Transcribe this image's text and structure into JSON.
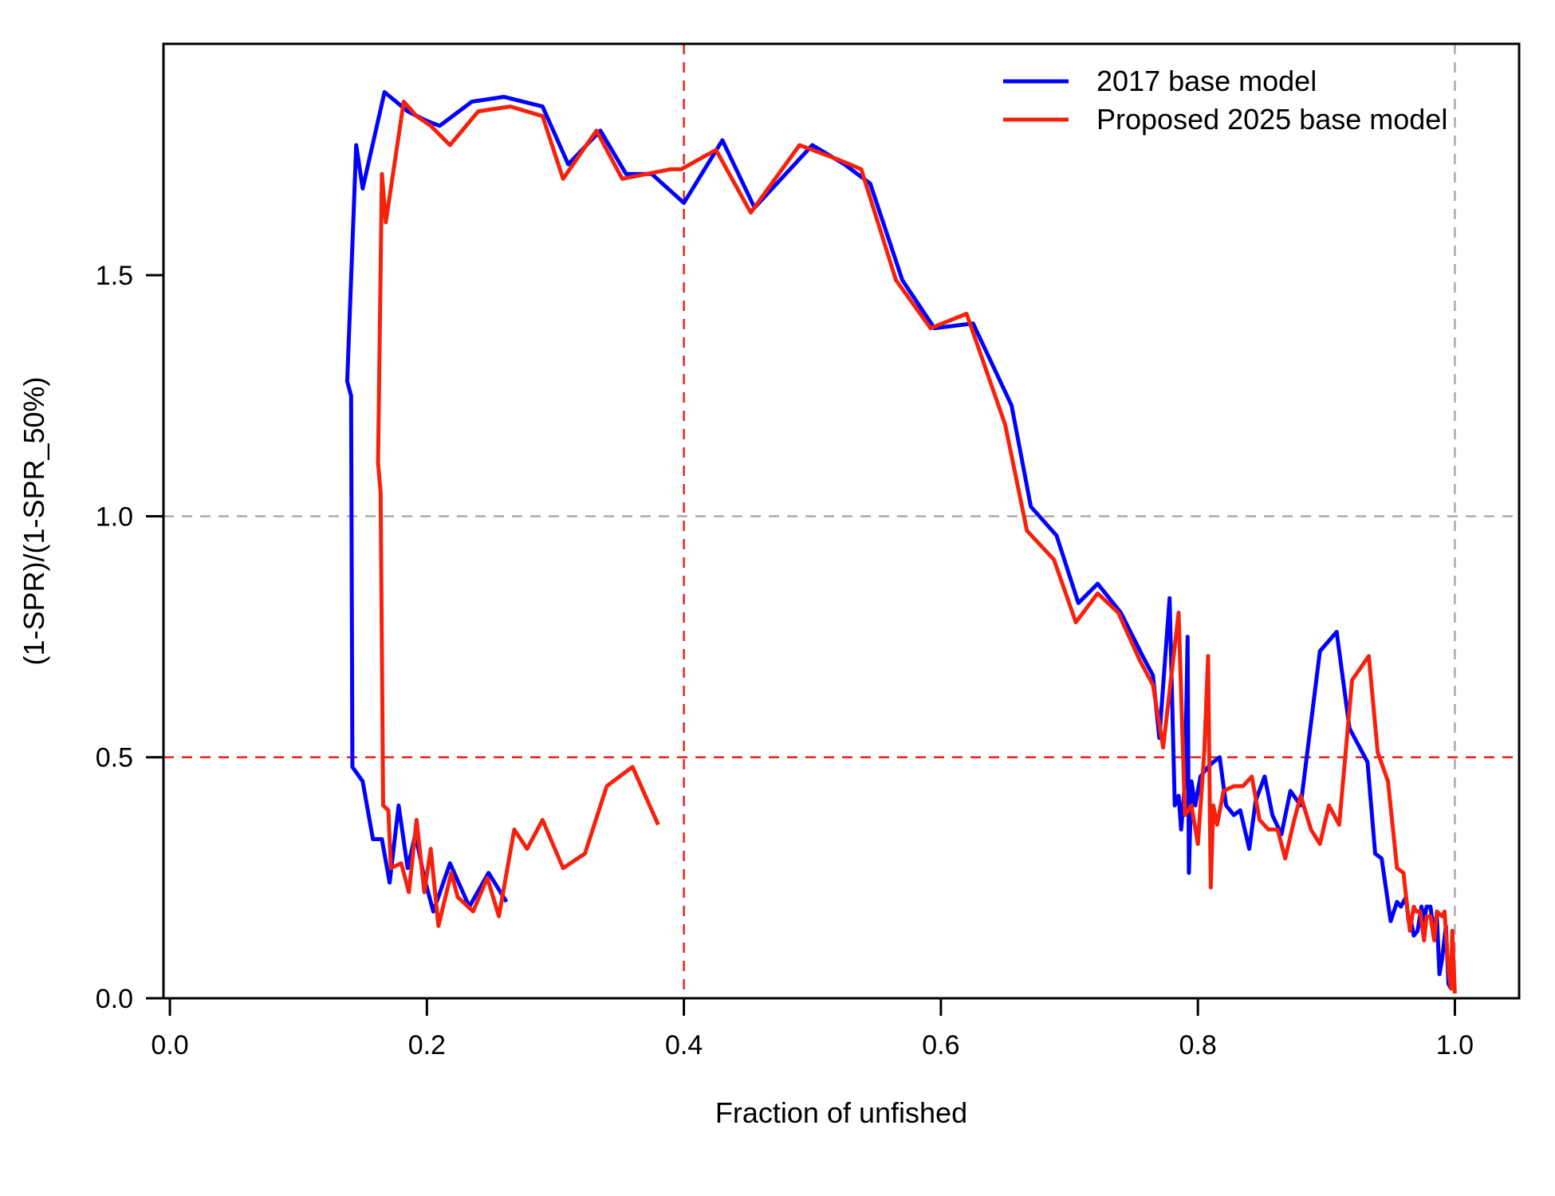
{
  "chart_data": {
    "type": "line",
    "xlabel": "Fraction of unfished",
    "ylabel": "(1-SPR)/(1-SPR_50%)",
    "xlim": [
      -0.005,
      1.05
    ],
    "ylim": [
      0.0,
      1.98
    ],
    "x_ticks": [
      0.0,
      0.2,
      0.4,
      0.6,
      0.8,
      1.0
    ],
    "x_tick_labels": [
      "0.0",
      "0.2",
      "0.4",
      "0.6",
      "0.8",
      "1.0"
    ],
    "y_ticks": [
      0.0,
      0.5,
      1.0,
      1.5
    ],
    "y_tick_labels": [
      "0.0",
      "0.5",
      "1.0",
      "1.5"
    ],
    "grid": false,
    "legend_position": "top-right",
    "reference_lines": [
      {
        "orientation": "vertical",
        "value": 0.4,
        "color": "#e8231f"
      },
      {
        "orientation": "vertical",
        "value": 1.0,
        "color": "#aaaaaa"
      },
      {
        "orientation": "horizontal",
        "value": 0.5,
        "color": "#e8231f"
      },
      {
        "orientation": "horizontal",
        "value": 1.0,
        "color": "#aaaaaa"
      }
    ],
    "series": [
      {
        "name": "2017 base model",
        "color": "#0000ff",
        "points": [
          [
            0.262,
            0.2
          ],
          [
            0.248,
            0.26
          ],
          [
            0.233,
            0.19
          ],
          [
            0.218,
            0.28
          ],
          [
            0.205,
            0.18
          ],
          [
            0.198,
            0.25
          ],
          [
            0.191,
            0.34
          ],
          [
            0.185,
            0.27
          ],
          [
            0.178,
            0.4
          ],
          [
            0.171,
            0.24
          ],
          [
            0.165,
            0.33
          ],
          [
            0.158,
            0.33
          ],
          [
            0.15,
            0.45
          ],
          [
            0.142,
            0.48
          ],
          [
            0.141,
            1.25
          ],
          [
            0.138,
            1.28
          ],
          [
            0.145,
            1.77
          ],
          [
            0.15,
            1.68
          ],
          [
            0.167,
            1.88
          ],
          [
            0.185,
            1.84
          ],
          [
            0.2,
            1.82
          ],
          [
            0.21,
            1.81
          ],
          [
            0.235,
            1.86
          ],
          [
            0.26,
            1.87
          ],
          [
            0.29,
            1.85
          ],
          [
            0.31,
            1.73
          ],
          [
            0.335,
            1.8
          ],
          [
            0.355,
            1.71
          ],
          [
            0.375,
            1.71
          ],
          [
            0.4,
            1.65
          ],
          [
            0.43,
            1.78
          ],
          [
            0.455,
            1.64
          ],
          [
            0.5,
            1.77
          ],
          [
            0.525,
            1.73
          ],
          [
            0.545,
            1.69
          ],
          [
            0.57,
            1.49
          ],
          [
            0.595,
            1.39
          ],
          [
            0.625,
            1.4
          ],
          [
            0.655,
            1.23
          ],
          [
            0.67,
            1.02
          ],
          [
            0.69,
            0.96
          ],
          [
            0.707,
            0.82
          ],
          [
            0.722,
            0.86
          ],
          [
            0.74,
            0.8
          ],
          [
            0.757,
            0.71
          ],
          [
            0.765,
            0.67
          ],
          [
            0.77,
            0.54
          ],
          [
            0.778,
            0.83
          ],
          [
            0.782,
            0.4
          ],
          [
            0.785,
            0.42
          ],
          [
            0.787,
            0.35
          ],
          [
            0.79,
            0.45
          ],
          [
            0.792,
            0.75
          ],
          [
            0.793,
            0.26
          ],
          [
            0.795,
            0.45
          ],
          [
            0.798,
            0.4
          ],
          [
            0.802,
            0.46
          ],
          [
            0.808,
            0.48
          ],
          [
            0.812,
            0.49
          ],
          [
            0.817,
            0.5
          ],
          [
            0.822,
            0.4
          ],
          [
            0.828,
            0.38
          ],
          [
            0.833,
            0.39
          ],
          [
            0.84,
            0.31
          ],
          [
            0.845,
            0.41
          ],
          [
            0.852,
            0.46
          ],
          [
            0.858,
            0.38
          ],
          [
            0.865,
            0.34
          ],
          [
            0.872,
            0.43
          ],
          [
            0.88,
            0.4
          ],
          [
            0.895,
            0.72
          ],
          [
            0.908,
            0.76
          ],
          [
            0.918,
            0.56
          ],
          [
            0.932,
            0.49
          ],
          [
            0.938,
            0.3
          ],
          [
            0.943,
            0.29
          ],
          [
            0.95,
            0.16
          ],
          [
            0.955,
            0.2
          ],
          [
            0.958,
            0.19
          ],
          [
            0.962,
            0.21
          ],
          [
            0.964,
            0.16
          ],
          [
            0.966,
            0.16
          ],
          [
            0.968,
            0.13
          ],
          [
            0.971,
            0.14
          ],
          [
            0.974,
            0.19
          ],
          [
            0.976,
            0.16
          ],
          [
            0.978,
            0.19
          ],
          [
            0.981,
            0.19
          ],
          [
            0.983,
            0.15
          ],
          [
            0.986,
            0.17
          ],
          [
            0.988,
            0.05
          ],
          [
            0.99,
            0.08
          ],
          [
            0.993,
            0.15
          ],
          [
            0.995,
            0.03
          ],
          [
            0.997,
            0.02
          ],
          [
            1.0,
            0.03
          ]
        ]
      },
      {
        "name": "Proposed 2025 base model",
        "color": "#f5210d",
        "points": [
          [
            0.38,
            0.36
          ],
          [
            0.36,
            0.48
          ],
          [
            0.34,
            0.44
          ],
          [
            0.323,
            0.3
          ],
          [
            0.306,
            0.27
          ],
          [
            0.29,
            0.37
          ],
          [
            0.278,
            0.31
          ],
          [
            0.268,
            0.35
          ],
          [
            0.256,
            0.17
          ],
          [
            0.247,
            0.25
          ],
          [
            0.236,
            0.18
          ],
          [
            0.224,
            0.21
          ],
          [
            0.219,
            0.26
          ],
          [
            0.209,
            0.15
          ],
          [
            0.203,
            0.31
          ],
          [
            0.198,
            0.22
          ],
          [
            0.192,
            0.37
          ],
          [
            0.186,
            0.22
          ],
          [
            0.18,
            0.28
          ],
          [
            0.172,
            0.27
          ],
          [
            0.17,
            0.39
          ],
          [
            0.166,
            0.4
          ],
          [
            0.164,
            1.05
          ],
          [
            0.162,
            1.11
          ],
          [
            0.165,
            1.71
          ],
          [
            0.168,
            1.61
          ],
          [
            0.182,
            1.86
          ],
          [
            0.192,
            1.83
          ],
          [
            0.203,
            1.81
          ],
          [
            0.218,
            1.77
          ],
          [
            0.24,
            1.84
          ],
          [
            0.265,
            1.85
          ],
          [
            0.29,
            1.83
          ],
          [
            0.306,
            1.7
          ],
          [
            0.332,
            1.8
          ],
          [
            0.352,
            1.7
          ],
          [
            0.39,
            1.72
          ],
          [
            0.398,
            1.72
          ],
          [
            0.425,
            1.76
          ],
          [
            0.452,
            1.63
          ],
          [
            0.49,
            1.77
          ],
          [
            0.52,
            1.74
          ],
          [
            0.538,
            1.72
          ],
          [
            0.565,
            1.49
          ],
          [
            0.592,
            1.39
          ],
          [
            0.62,
            1.42
          ],
          [
            0.65,
            1.19
          ],
          [
            0.667,
            0.97
          ],
          [
            0.688,
            0.91
          ],
          [
            0.705,
            0.78
          ],
          [
            0.722,
            0.84
          ],
          [
            0.738,
            0.8
          ],
          [
            0.755,
            0.7
          ],
          [
            0.765,
            0.65
          ],
          [
            0.773,
            0.52
          ],
          [
            0.785,
            0.8
          ],
          [
            0.79,
            0.38
          ],
          [
            0.795,
            0.4
          ],
          [
            0.8,
            0.32
          ],
          [
            0.805,
            0.51
          ],
          [
            0.808,
            0.71
          ],
          [
            0.81,
            0.23
          ],
          [
            0.812,
            0.4
          ],
          [
            0.815,
            0.36
          ],
          [
            0.82,
            0.43
          ],
          [
            0.828,
            0.44
          ],
          [
            0.835,
            0.44
          ],
          [
            0.842,
            0.46
          ],
          [
            0.848,
            0.37
          ],
          [
            0.855,
            0.35
          ],
          [
            0.862,
            0.35
          ],
          [
            0.868,
            0.29
          ],
          [
            0.875,
            0.37
          ],
          [
            0.88,
            0.42
          ],
          [
            0.888,
            0.35
          ],
          [
            0.895,
            0.32
          ],
          [
            0.902,
            0.4
          ],
          [
            0.91,
            0.36
          ],
          [
            0.92,
            0.66
          ],
          [
            0.933,
            0.71
          ],
          [
            0.94,
            0.51
          ],
          [
            0.948,
            0.45
          ],
          [
            0.955,
            0.27
          ],
          [
            0.96,
            0.26
          ],
          [
            0.965,
            0.14
          ],
          [
            0.968,
            0.19
          ],
          [
            0.97,
            0.18
          ],
          [
            0.973,
            0.18
          ],
          [
            0.976,
            0.12
          ],
          [
            0.978,
            0.17
          ],
          [
            0.981,
            0.17
          ],
          [
            0.984,
            0.12
          ],
          [
            0.986,
            0.18
          ],
          [
            0.99,
            0.17
          ],
          [
            0.992,
            0.18
          ],
          [
            0.995,
            0.06
          ],
          [
            0.997,
            0.02
          ],
          [
            0.998,
            0.14
          ],
          [
            1.0,
            0.01
          ]
        ]
      }
    ]
  }
}
